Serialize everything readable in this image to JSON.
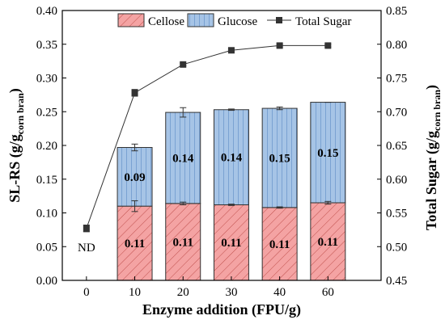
{
  "chart_data": {
    "type": "bar",
    "categories": [
      "0",
      "10",
      "20",
      "30",
      "40",
      "60"
    ],
    "xlabel": "Enzyme addition (FPU/g)",
    "ylabel": {
      "main": "SL-RS (g/g",
      "sub": "corn bran",
      "close": ")"
    },
    "ylabel_right": {
      "main": "Total Sugar (g/g",
      "sub": "corn bran",
      "close": ")"
    },
    "ylim": [
      0.0,
      0.4
    ],
    "ylim_right": [
      0.45,
      0.85
    ],
    "yticks": [
      "0.00",
      "0.05",
      "0.10",
      "0.15",
      "0.20",
      "0.25",
      "0.30",
      "0.35",
      "0.40"
    ],
    "yticks_right": [
      "0.45",
      "0.50",
      "0.55",
      "0.60",
      "0.65",
      "0.70",
      "0.75",
      "0.80",
      "0.85"
    ],
    "series": [
      {
        "name": "Cellose",
        "type": "bar-stacked",
        "color": "#f4a3a3",
        "hatch": "diagonal",
        "values": [
          null,
          0.11,
          0.114,
          0.112,
          0.108,
          0.115
        ],
        "errors": [
          null,
          0.008,
          0.002,
          0.001,
          0.001,
          0.002
        ],
        "labels": [
          "",
          "0.11",
          "0.11",
          "0.11",
          "0.11",
          "0.11"
        ]
      },
      {
        "name": "Glucose",
        "type": "bar-stacked",
        "color": "#a6c4e6",
        "hatch": "vertical",
        "values": [
          null,
          0.087,
          0.135,
          0.141,
          0.147,
          0.149
        ],
        "errors": [
          null,
          0.005,
          0.007,
          0.001,
          0.002,
          0.0
        ],
        "labels": [
          "",
          "0.09",
          "0.14",
          "0.14",
          "0.15",
          "0.15"
        ]
      },
      {
        "name": "Total Sugar",
        "type": "line",
        "axis": "right",
        "color": "#333333",
        "values": [
          0.527,
          0.728,
          0.77,
          0.791,
          0.798,
          0.798
        ],
        "errors": [
          0.005,
          0.005,
          0.002,
          0.002,
          0.002,
          0.002
        ]
      }
    ],
    "annotations": [
      {
        "category": "0",
        "text": "ND"
      }
    ],
    "legend_position": "top",
    "grid": false
  }
}
